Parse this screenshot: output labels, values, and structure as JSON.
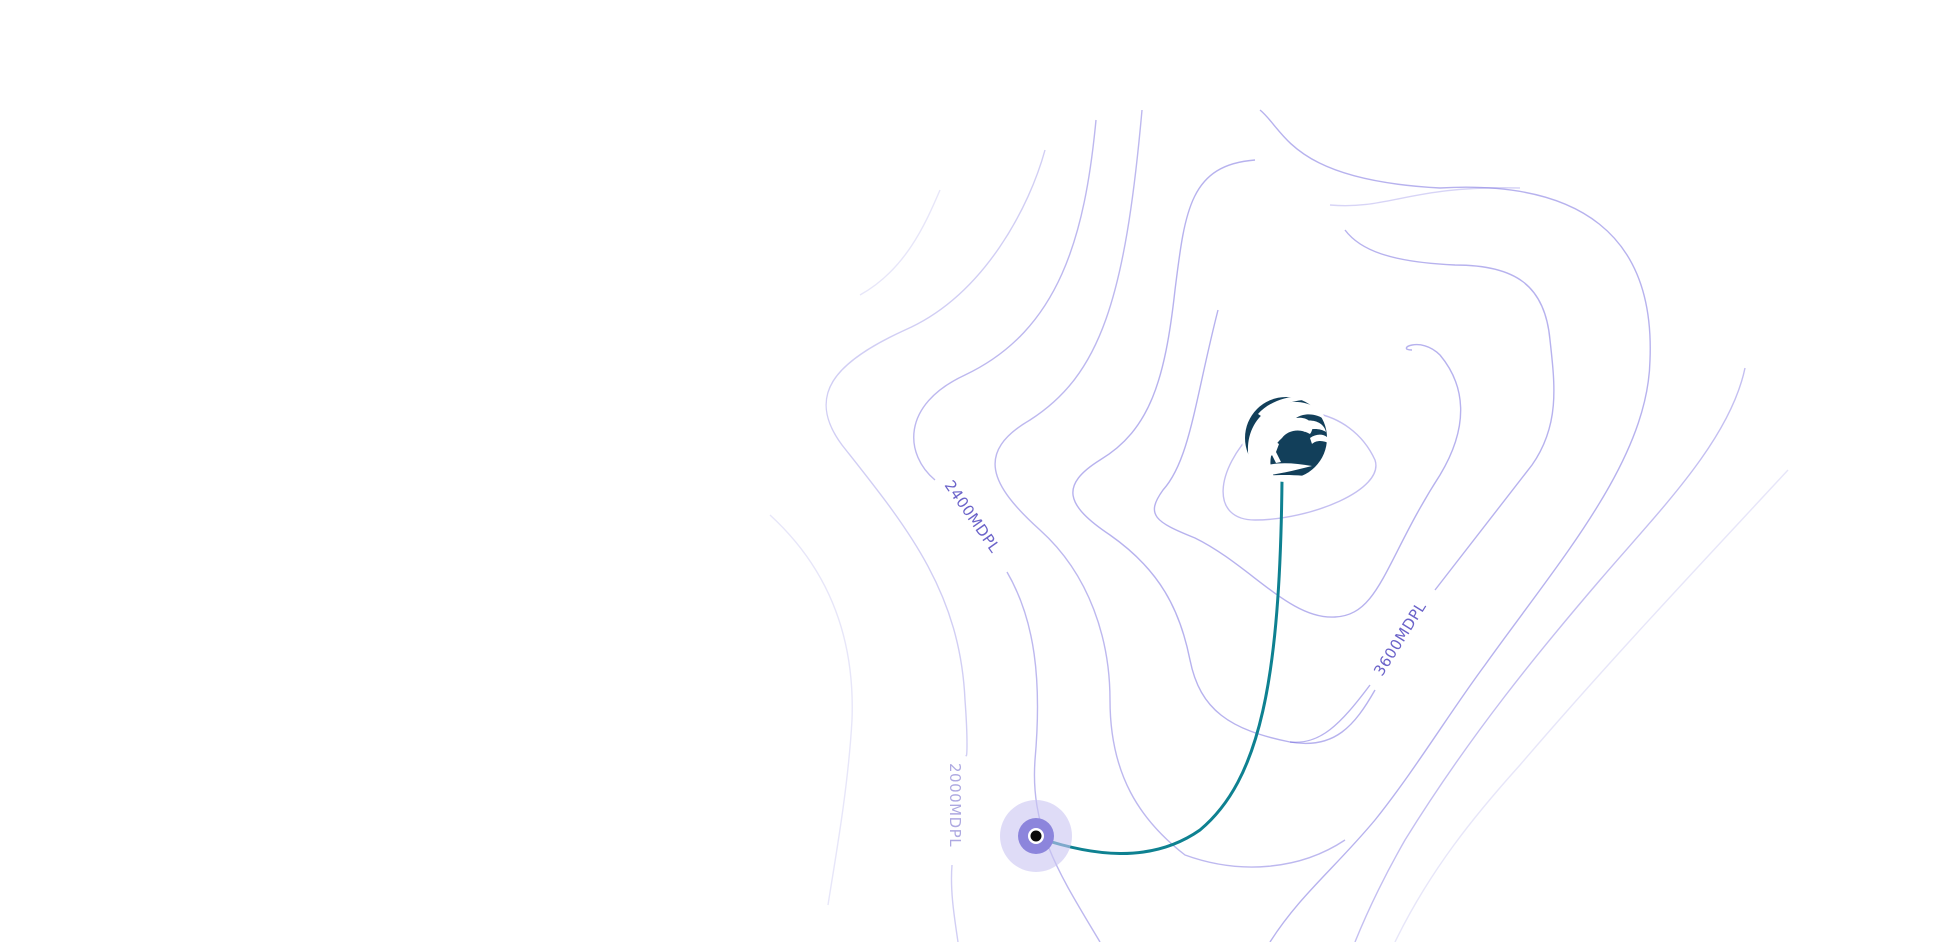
{
  "map": {
    "contour_color": "#7c72e0",
    "label_color": "#6b63c9",
    "route_color": "#0e8191",
    "labels": {
      "l2000": "2000MDPL",
      "l2400": "2400MDPL",
      "l3600": "3600MDPL"
    },
    "start_marker": {
      "name": "start-point",
      "halo_color": "#c9c5f2",
      "ring_color": "#8c85dc",
      "core_color": "#0a0a0a"
    },
    "summit_marker": {
      "icon": "wave-logo-icon",
      "fill_color": "#123f5a"
    }
  }
}
